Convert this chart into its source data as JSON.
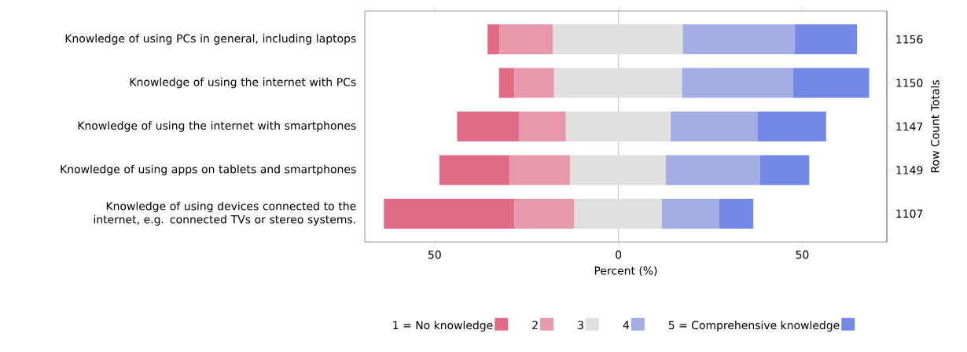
{
  "chart_data": {
    "type": "bar",
    "orientation": "horizontal",
    "categories": [
      "Knowledge of using PCs in general, including laptops",
      "Knowledge of using the internet with PCs",
      "Knowledge of using the internet with smartphones",
      "Knowledge of using apps on tablets and smartphones",
      "Knowledge of using devices connected to the internet, e.g. connected TVs or stereo systems."
    ],
    "y2_categories": [
      "1156",
      "1150",
      "1147",
      "1149",
      "1107"
    ],
    "y2label": "Row Count Totals",
    "xlabel": "Percent (%)",
    "series": [
      {
        "name": "1 = No knowledge",
        "color": "#e16a86",
        "base": [
          -35.6,
          -32.5,
          -43.9,
          -48.7,
          -63.8
        ],
        "values": [
          3.2,
          4.2,
          16.8,
          19.1,
          35.5
        ]
      },
      {
        "name": "2",
        "color": "#e899a9",
        "base": [
          -32.4,
          -28.3,
          -27.1,
          -29.6,
          -28.3
        ],
        "values": [
          14.6,
          10.8,
          12.8,
          16.4,
          16.3
        ]
      },
      {
        "name": "3",
        "color": "#e0e0e0",
        "base": [
          -17.8,
          -17.5,
          -14.3,
          -13.2,
          -12.0
        ],
        "values": [
          35.3,
          34.8,
          28.5,
          26.1,
          23.8
        ]
      },
      {
        "name": "4",
        "color": "#a1ade3",
        "base": [
          17.5,
          17.3,
          14.2,
          12.9,
          11.8
        ],
        "values": [
          30.4,
          30.2,
          23.6,
          25.6,
          15.5
        ]
      },
      {
        "name": "5 = Comprehensive knowledge",
        "color": "#7489e6",
        "base": [
          47.9,
          47.5,
          37.8,
          38.5,
          27.3
        ],
        "values": [
          17.0,
          20.7,
          18.7,
          13.4,
          9.4
        ]
      }
    ],
    "xlim": [
      -69,
      73
    ],
    "xticks": [
      {
        "value": -50,
        "label": "50"
      },
      0,
      50
    ],
    "ref_lines": [
      {
        "axis": "x",
        "value": 0,
        "color": "#bebebe"
      }
    ],
    "legend": "bottom",
    "grid": false
  }
}
